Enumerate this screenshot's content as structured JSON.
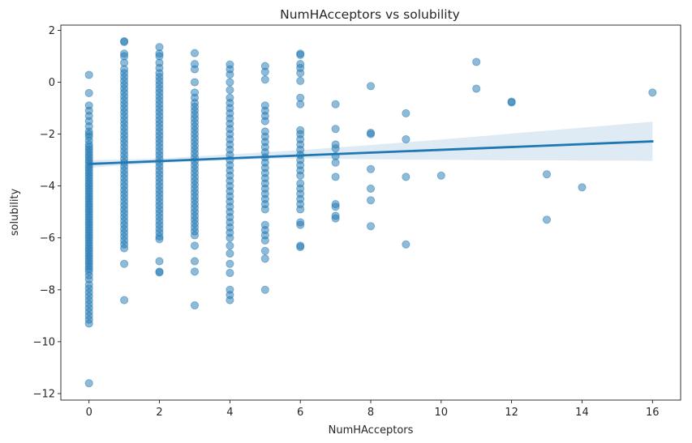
{
  "chart_data": {
    "type": "scatter",
    "title": "NumHAcceptors vs solubility",
    "xlabel": "NumHAcceptors",
    "ylabel": "solubility",
    "xlim": [
      -0.8,
      16.8
    ],
    "ylim": [
      -12.25,
      2.2
    ],
    "xticks": [
      0,
      2,
      4,
      6,
      8,
      10,
      12,
      14,
      16
    ],
    "yticks": [
      -12,
      -10,
      -8,
      -6,
      -4,
      -2,
      0,
      2
    ],
    "grid": false,
    "point_color": "#1f77b4",
    "point_alpha": 0.5,
    "regression": {
      "x": [
        0,
        16
      ],
      "y": [
        -3.15,
        -2.28
      ],
      "line_color": "#1f77b4",
      "ci_color": "#1f77b4",
      "ci": {
        "x": [
          0,
          1,
          2,
          3,
          4,
          5,
          6,
          7,
          8,
          9,
          10,
          11,
          12,
          13,
          14,
          15,
          16
        ],
        "lower": [
          -3.3,
          -3.2,
          -3.12,
          -3.06,
          -3.0,
          -2.96,
          -2.94,
          -2.95,
          -2.97,
          -2.98,
          -2.99,
          -3.0,
          -3.01,
          -3.01,
          -3.02,
          -3.02,
          -3.03
        ],
        "upper": [
          -3.0,
          -2.98,
          -2.94,
          -2.86,
          -2.78,
          -2.7,
          -2.62,
          -2.52,
          -2.42,
          -2.32,
          -2.21,
          -2.1,
          -1.98,
          -1.87,
          -1.75,
          -1.64,
          -1.52
        ]
      }
    },
    "points": [
      [
        0,
        0.28
      ],
      [
        0,
        -0.42
      ],
      [
        0,
        -0.9
      ],
      [
        0,
        -1.1
      ],
      [
        0,
        -1.3
      ],
      [
        0,
        -1.5
      ],
      [
        0,
        -1.7
      ],
      [
        0,
        -1.9
      ],
      [
        0,
        -2.0
      ],
      [
        0,
        -2.1
      ],
      [
        0,
        -2.25
      ],
      [
        0,
        -2.4
      ],
      [
        0,
        -2.5
      ],
      [
        0,
        -2.6
      ],
      [
        0,
        -2.7
      ],
      [
        0,
        -2.8
      ],
      [
        0,
        -2.9
      ],
      [
        0,
        -3.0
      ],
      [
        0,
        -3.1
      ],
      [
        0,
        -3.2
      ],
      [
        0,
        -3.3
      ],
      [
        0,
        -3.4
      ],
      [
        0,
        -3.5
      ],
      [
        0,
        -3.6
      ],
      [
        0,
        -3.7
      ],
      [
        0,
        -3.8
      ],
      [
        0,
        -3.9
      ],
      [
        0,
        -4.0
      ],
      [
        0,
        -4.1
      ],
      [
        0,
        -4.2
      ],
      [
        0,
        -4.3
      ],
      [
        0,
        -4.4
      ],
      [
        0,
        -4.5
      ],
      [
        0,
        -4.6
      ],
      [
        0,
        -4.7
      ],
      [
        0,
        -4.8
      ],
      [
        0,
        -4.9
      ],
      [
        0,
        -5.0
      ],
      [
        0,
        -5.1
      ],
      [
        0,
        -5.2
      ],
      [
        0,
        -5.3
      ],
      [
        0,
        -5.4
      ],
      [
        0,
        -5.5
      ],
      [
        0,
        -5.6
      ],
      [
        0,
        -5.7
      ],
      [
        0,
        -5.8
      ],
      [
        0,
        -5.9
      ],
      [
        0,
        -6.0
      ],
      [
        0,
        -6.1
      ],
      [
        0,
        -6.2
      ],
      [
        0,
        -6.3
      ],
      [
        0,
        -6.4
      ],
      [
        0,
        -6.5
      ],
      [
        0,
        -6.6
      ],
      [
        0,
        -6.7
      ],
      [
        0,
        -6.8
      ],
      [
        0,
        -6.9
      ],
      [
        0,
        -7.0
      ],
      [
        0,
        -7.1
      ],
      [
        0,
        -7.2
      ],
      [
        0,
        -7.3
      ],
      [
        0,
        -7.45
      ],
      [
        0,
        -7.6
      ],
      [
        0,
        -7.8
      ],
      [
        0,
        -7.95
      ],
      [
        0,
        -8.1
      ],
      [
        0,
        -8.25
      ],
      [
        0,
        -8.4
      ],
      [
        0,
        -8.55
      ],
      [
        0,
        -8.7
      ],
      [
        0,
        -8.85
      ],
      [
        0,
        -9.0
      ],
      [
        0,
        -9.15
      ],
      [
        0,
        -9.3
      ],
      [
        0,
        -11.6
      ],
      [
        1,
        1.58
      ],
      [
        1,
        1.55
      ],
      [
        1,
        1.1
      ],
      [
        1,
        1.0
      ],
      [
        1,
        0.75
      ],
      [
        1,
        0.5
      ],
      [
        1,
        0.35
      ],
      [
        1,
        0.2
      ],
      [
        1,
        0.05
      ],
      [
        1,
        -0.1
      ],
      [
        1,
        -0.25
      ],
      [
        1,
        -0.4
      ],
      [
        1,
        -0.55
      ],
      [
        1,
        -0.7
      ],
      [
        1,
        -0.85
      ],
      [
        1,
        -1.0
      ],
      [
        1,
        -1.15
      ],
      [
        1,
        -1.3
      ],
      [
        1,
        -1.45
      ],
      [
        1,
        -1.6
      ],
      [
        1,
        -1.75
      ],
      [
        1,
        -1.9
      ],
      [
        1,
        -2.05
      ],
      [
        1,
        -2.2
      ],
      [
        1,
        -2.35
      ],
      [
        1,
        -2.5
      ],
      [
        1,
        -2.65
      ],
      [
        1,
        -2.8
      ],
      [
        1,
        -2.95
      ],
      [
        1,
        -3.1
      ],
      [
        1,
        -3.25
      ],
      [
        1,
        -3.4
      ],
      [
        1,
        -3.55
      ],
      [
        1,
        -3.7
      ],
      [
        1,
        -3.85
      ],
      [
        1,
        -4.0
      ],
      [
        1,
        -4.15
      ],
      [
        1,
        -4.3
      ],
      [
        1,
        -4.45
      ],
      [
        1,
        -4.6
      ],
      [
        1,
        -4.75
      ],
      [
        1,
        -4.9
      ],
      [
        1,
        -5.05
      ],
      [
        1,
        -5.2
      ],
      [
        1,
        -5.35
      ],
      [
        1,
        -5.5
      ],
      [
        1,
        -5.65
      ],
      [
        1,
        -5.8
      ],
      [
        1,
        -5.95
      ],
      [
        1,
        -6.1
      ],
      [
        1,
        -6.25
      ],
      [
        1,
        -6.4
      ],
      [
        1,
        -7.0
      ],
      [
        1,
        -8.4
      ],
      [
        2,
        1.35
      ],
      [
        2,
        1.1
      ],
      [
        2,
        1.0
      ],
      [
        2,
        0.75
      ],
      [
        2,
        0.55
      ],
      [
        2,
        0.35
      ],
      [
        2,
        0.2
      ],
      [
        2,
        0.05
      ],
      [
        2,
        -0.1
      ],
      [
        2,
        -0.25
      ],
      [
        2,
        -0.4
      ],
      [
        2,
        -0.55
      ],
      [
        2,
        -0.7
      ],
      [
        2,
        -0.85
      ],
      [
        2,
        -1.0
      ],
      [
        2,
        -1.15
      ],
      [
        2,
        -1.3
      ],
      [
        2,
        -1.45
      ],
      [
        2,
        -1.6
      ],
      [
        2,
        -1.75
      ],
      [
        2,
        -1.9
      ],
      [
        2,
        -2.05
      ],
      [
        2,
        -2.2
      ],
      [
        2,
        -2.35
      ],
      [
        2,
        -2.5
      ],
      [
        2,
        -2.65
      ],
      [
        2,
        -2.8
      ],
      [
        2,
        -2.95
      ],
      [
        2,
        -3.1
      ],
      [
        2,
        -3.25
      ],
      [
        2,
        -3.4
      ],
      [
        2,
        -3.55
      ],
      [
        2,
        -3.7
      ],
      [
        2,
        -3.85
      ],
      [
        2,
        -4.0
      ],
      [
        2,
        -4.15
      ],
      [
        2,
        -4.3
      ],
      [
        2,
        -4.45
      ],
      [
        2,
        -4.6
      ],
      [
        2,
        -4.75
      ],
      [
        2,
        -4.9
      ],
      [
        2,
        -5.05
      ],
      [
        2,
        -5.2
      ],
      [
        2,
        -5.35
      ],
      [
        2,
        -5.5
      ],
      [
        2,
        -5.65
      ],
      [
        2,
        -5.8
      ],
      [
        2,
        -5.95
      ],
      [
        2,
        -6.05
      ],
      [
        2,
        -6.9
      ],
      [
        2,
        -7.3
      ],
      [
        2,
        -7.33
      ],
      [
        3,
        1.12
      ],
      [
        3,
        0.7
      ],
      [
        3,
        0.5
      ],
      [
        3,
        0.0
      ],
      [
        3,
        -0.4
      ],
      [
        3,
        -0.6
      ],
      [
        3,
        -0.8
      ],
      [
        3,
        -0.95
      ],
      [
        3,
        -1.1
      ],
      [
        3,
        -1.25
      ],
      [
        3,
        -1.4
      ],
      [
        3,
        -1.55
      ],
      [
        3,
        -1.7
      ],
      [
        3,
        -1.85
      ],
      [
        3,
        -2.0
      ],
      [
        3,
        -2.15
      ],
      [
        3,
        -2.3
      ],
      [
        3,
        -2.45
      ],
      [
        3,
        -2.6
      ],
      [
        3,
        -2.75
      ],
      [
        3,
        -2.9
      ],
      [
        3,
        -3.05
      ],
      [
        3,
        -3.2
      ],
      [
        3,
        -3.35
      ],
      [
        3,
        -3.5
      ],
      [
        3,
        -3.65
      ],
      [
        3,
        -3.8
      ],
      [
        3,
        -3.95
      ],
      [
        3,
        -4.1
      ],
      [
        3,
        -4.25
      ],
      [
        3,
        -4.4
      ],
      [
        3,
        -4.55
      ],
      [
        3,
        -4.7
      ],
      [
        3,
        -4.85
      ],
      [
        3,
        -5.0
      ],
      [
        3,
        -5.15
      ],
      [
        3,
        -5.3
      ],
      [
        3,
        -5.45
      ],
      [
        3,
        -5.6
      ],
      [
        3,
        -5.75
      ],
      [
        3,
        -5.9
      ],
      [
        3,
        -6.3
      ],
      [
        3,
        -6.9
      ],
      [
        3,
        -7.3
      ],
      [
        3,
        -8.6
      ],
      [
        4,
        0.68
      ],
      [
        4,
        0.5
      ],
      [
        4,
        0.3
      ],
      [
        4,
        0.0
      ],
      [
        4,
        -0.3
      ],
      [
        4,
        -0.6
      ],
      [
        4,
        -0.8
      ],
      [
        4,
        -1.0
      ],
      [
        4,
        -1.2
      ],
      [
        4,
        -1.4
      ],
      [
        4,
        -1.6
      ],
      [
        4,
        -1.8
      ],
      [
        4,
        -2.0
      ],
      [
        4,
        -2.2
      ],
      [
        4,
        -2.4
      ],
      [
        4,
        -2.6
      ],
      [
        4,
        -2.8
      ],
      [
        4,
        -3.0
      ],
      [
        4,
        -3.2
      ],
      [
        4,
        -3.4
      ],
      [
        4,
        -3.6
      ],
      [
        4,
        -3.8
      ],
      [
        4,
        -4.0
      ],
      [
        4,
        -4.2
      ],
      [
        4,
        -4.4
      ],
      [
        4,
        -4.6
      ],
      [
        4,
        -4.8
      ],
      [
        4,
        -5.0
      ],
      [
        4,
        -5.2
      ],
      [
        4,
        -5.4
      ],
      [
        4,
        -5.6
      ],
      [
        4,
        -5.8
      ],
      [
        4,
        -6.0
      ],
      [
        4,
        -6.3
      ],
      [
        4,
        -6.6
      ],
      [
        4,
        -7.0
      ],
      [
        4,
        -7.35
      ],
      [
        4,
        -8.0
      ],
      [
        4,
        -8.2
      ],
      [
        4,
        -8.4
      ],
      [
        5,
        0.62
      ],
      [
        5,
        0.4
      ],
      [
        5,
        0.1
      ],
      [
        5,
        -0.9
      ],
      [
        5,
        -1.1
      ],
      [
        5,
        -1.3
      ],
      [
        5,
        -1.5
      ],
      [
        5,
        -1.9
      ],
      [
        5,
        -2.1
      ],
      [
        5,
        -2.3
      ],
      [
        5,
        -2.5
      ],
      [
        5,
        -2.7
      ],
      [
        5,
        -2.9
      ],
      [
        5,
        -3.1
      ],
      [
        5,
        -3.3
      ],
      [
        5,
        -3.5
      ],
      [
        5,
        -3.7
      ],
      [
        5,
        -3.9
      ],
      [
        5,
        -4.1
      ],
      [
        5,
        -4.3
      ],
      [
        5,
        -4.5
      ],
      [
        5,
        -4.7
      ],
      [
        5,
        -4.9
      ],
      [
        5,
        -5.5
      ],
      [
        5,
        -5.7
      ],
      [
        5,
        -5.9
      ],
      [
        5,
        -6.1
      ],
      [
        5,
        -6.5
      ],
      [
        5,
        -6.8
      ],
      [
        5,
        -8.0
      ],
      [
        6,
        1.1
      ],
      [
        6,
        1.05
      ],
      [
        6,
        0.7
      ],
      [
        6,
        0.55
      ],
      [
        6,
        0.35
      ],
      [
        6,
        0.05
      ],
      [
        6,
        -0.6
      ],
      [
        6,
        -0.85
      ],
      [
        6,
        -1.85
      ],
      [
        6,
        -2.0
      ],
      [
        6,
        -2.2
      ],
      [
        6,
        -2.4
      ],
      [
        6,
        -2.6
      ],
      [
        6,
        -2.8
      ],
      [
        6,
        -3.0
      ],
      [
        6,
        -3.2
      ],
      [
        6,
        -3.4
      ],
      [
        6,
        -3.6
      ],
      [
        6,
        -3.9
      ],
      [
        6,
        -4.1
      ],
      [
        6,
        -4.3
      ],
      [
        6,
        -4.5
      ],
      [
        6,
        -4.7
      ],
      [
        6,
        -4.9
      ],
      [
        6,
        -5.4
      ],
      [
        6,
        -5.5
      ],
      [
        6,
        -6.3
      ],
      [
        6,
        -6.35
      ],
      [
        7,
        -0.85
      ],
      [
        7,
        -1.8
      ],
      [
        7,
        -2.4
      ],
      [
        7,
        -2.55
      ],
      [
        7,
        -2.85
      ],
      [
        7,
        -3.1
      ],
      [
        7,
        -3.65
      ],
      [
        7,
        -4.7
      ],
      [
        7,
        -4.8
      ],
      [
        7,
        -5.15
      ],
      [
        7,
        -5.25
      ],
      [
        8,
        -0.15
      ],
      [
        8,
        -1.95
      ],
      [
        8,
        -2.0
      ],
      [
        8,
        -3.35
      ],
      [
        8,
        -4.1
      ],
      [
        8,
        -4.55
      ],
      [
        8,
        -5.55
      ],
      [
        9,
        -1.2
      ],
      [
        9,
        -2.2
      ],
      [
        9,
        -3.65
      ],
      [
        9,
        -6.25
      ],
      [
        10,
        -3.6
      ],
      [
        11,
        0.78
      ],
      [
        11,
        -0.25
      ],
      [
        12,
        -0.75
      ],
      [
        12,
        -0.78
      ],
      [
        13,
        -3.55
      ],
      [
        13,
        -5.3
      ],
      [
        14,
        -4.05
      ],
      [
        16,
        -0.4
      ]
    ]
  }
}
